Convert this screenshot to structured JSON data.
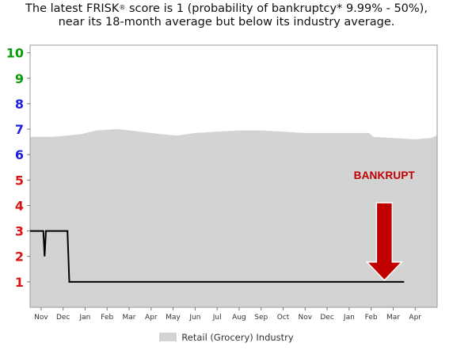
{
  "headline": {
    "pre": "The latest FRISK",
    "reg": "®",
    "post1": " score is 1 (probability of bankruptcy* 9.99% - 50%),",
    "line2": "near its 18-month average but below its industry average."
  },
  "colors": {
    "industry_fill": "#d3d3d3",
    "company_line": "#000000",
    "arrow": "#c00000",
    "ytick_green": "#0a9a0a",
    "ytick_blue": "#1f1fdd",
    "ytick_red": "#dd1111"
  },
  "chart_data": {
    "type": "area",
    "ylim": [
      0,
      10.3
    ],
    "yticks": [
      {
        "value": 1,
        "label": "1",
        "color": "red"
      },
      {
        "value": 2,
        "label": "2",
        "color": "red"
      },
      {
        "value": 3,
        "label": "3",
        "color": "red"
      },
      {
        "value": 4,
        "label": "4",
        "color": "red"
      },
      {
        "value": 5,
        "label": "5",
        "color": "red"
      },
      {
        "value": 6,
        "label": "6",
        "color": "blue"
      },
      {
        "value": 7,
        "label": "7",
        "color": "blue"
      },
      {
        "value": 8,
        "label": "8",
        "color": "blue"
      },
      {
        "value": 9,
        "label": "9",
        "color": "green"
      },
      {
        "value": 10,
        "label": "10",
        "color": "green"
      }
    ],
    "xlim": [
      0,
      18.5
    ],
    "xticks": [
      {
        "x": 0.5,
        "label": "Nov"
      },
      {
        "x": 1.5,
        "label": "Dec"
      },
      {
        "x": 2.5,
        "label": "Jan"
      },
      {
        "x": 3.5,
        "label": "Feb"
      },
      {
        "x": 4.5,
        "label": "Mar"
      },
      {
        "x": 5.5,
        "label": "Apr"
      },
      {
        "x": 6.5,
        "label": "May"
      },
      {
        "x": 7.5,
        "label": "Jun"
      },
      {
        "x": 8.5,
        "label": "Jul"
      },
      {
        "x": 9.5,
        "label": "Aug"
      },
      {
        "x": 10.5,
        "label": "Sep"
      },
      {
        "x": 11.5,
        "label": "Oct"
      },
      {
        "x": 12.5,
        "label": "Nov"
      },
      {
        "x": 13.5,
        "label": "Dec"
      },
      {
        "x": 14.5,
        "label": "Jan"
      },
      {
        "x": 15.5,
        "label": "Feb"
      },
      {
        "x": 16.5,
        "label": "Mar"
      },
      {
        "x": 17.5,
        "label": "Apr"
      }
    ],
    "series": [
      {
        "name": "Retail (Grocery) Industry",
        "kind": "area",
        "points": [
          [
            0,
            6.7
          ],
          [
            1,
            6.7
          ],
          [
            1.7,
            6.75
          ],
          [
            2.3,
            6.8
          ],
          [
            3,
            6.95
          ],
          [
            4,
            7.0
          ],
          [
            5,
            6.9
          ],
          [
            6,
            6.8
          ],
          [
            6.7,
            6.75
          ],
          [
            7.5,
            6.85
          ],
          [
            8.5,
            6.9
          ],
          [
            9.5,
            6.95
          ],
          [
            10.5,
            6.95
          ],
          [
            11.5,
            6.9
          ],
          [
            12.5,
            6.85
          ],
          [
            13.5,
            6.85
          ],
          [
            14.5,
            6.85
          ],
          [
            15.4,
            6.85
          ],
          [
            15.6,
            6.7
          ],
          [
            16.5,
            6.65
          ],
          [
            17.5,
            6.6
          ],
          [
            18.2,
            6.65
          ],
          [
            18.5,
            6.75
          ]
        ]
      },
      {
        "kind": "line",
        "points": [
          [
            0,
            3
          ],
          [
            0.6,
            3
          ],
          [
            0.66,
            2
          ],
          [
            0.72,
            3
          ],
          [
            1.7,
            3
          ],
          [
            1.78,
            1
          ],
          [
            17,
            1
          ]
        ]
      }
    ],
    "annotations": [
      {
        "text": "BANKRUPT",
        "x": 16.1,
        "y": 4.2,
        "target_y": 1.0
      }
    ]
  },
  "legend": {
    "label": "Retail (Grocery) Industry"
  }
}
